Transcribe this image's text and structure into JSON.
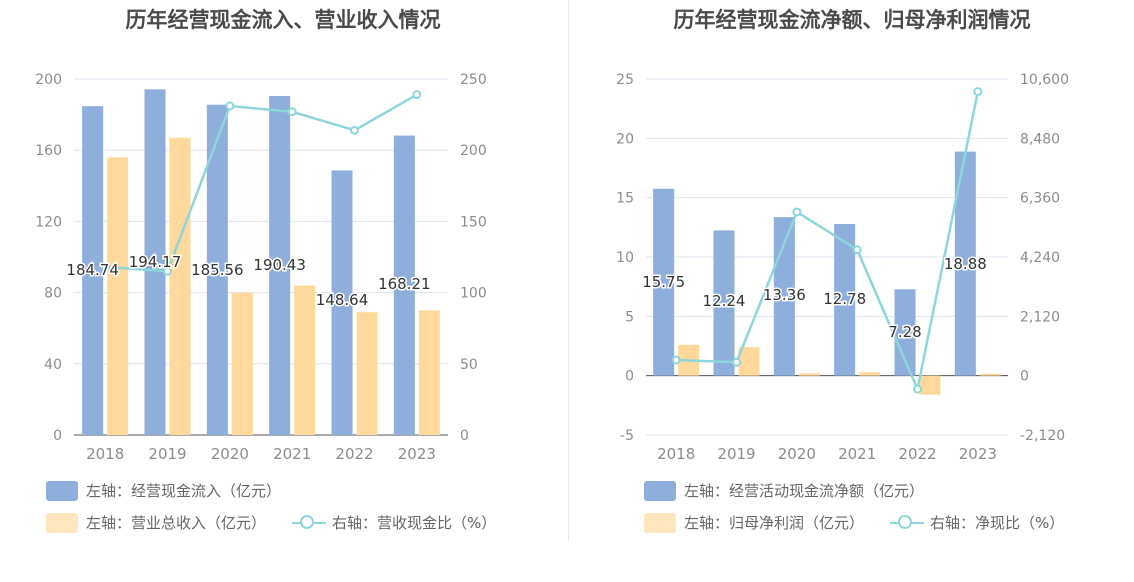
{
  "colors": {
    "primary_bar": "#8eaedb",
    "secondary_bar": "#ffd99b",
    "line": "#8dd6dc",
    "grid": "#dfe3f0",
    "axis": "#8c8c8c"
  },
  "chart_data": [
    {
      "type": "bar",
      "title": "历年经营现金流入、营业收入情况",
      "categories": [
        "2018",
        "2019",
        "2020",
        "2021",
        "2022",
        "2023"
      ],
      "y_left": {
        "min": 0,
        "max": 200,
        "ticks": [
          "0",
          "40",
          "80",
          "120",
          "160",
          "200"
        ]
      },
      "y_right": {
        "min": 0,
        "max": 250,
        "ticks": [
          "0",
          "50",
          "100",
          "150",
          "200",
          "250"
        ]
      },
      "series": [
        {
          "name": "左轴：经营现金流入（亿元）",
          "axis": "left",
          "kind": "bar",
          "values": [
            184.74,
            194.17,
            185.56,
            190.43,
            148.64,
            168.21
          ],
          "labels": [
            "184.74",
            "194.17",
            "185.56",
            "190.43",
            "148.64",
            "168.21"
          ]
        },
        {
          "name": "左轴：营业总收入（亿元）",
          "axis": "left",
          "kind": "bar",
          "values": [
            156,
            167,
            80,
            84,
            69,
            70
          ]
        },
        {
          "name": "右轴：营收现金比（%）",
          "axis": "right",
          "kind": "line",
          "values": [
            118,
            115,
            231,
            227,
            214,
            239
          ]
        }
      ],
      "grid": true,
      "legend_position": "bottom-left"
    },
    {
      "type": "bar",
      "title": "历年经营现金流净额、归母净利润情况",
      "categories": [
        "2018",
        "2019",
        "2020",
        "2021",
        "2022",
        "2023"
      ],
      "y_left": {
        "min": -5,
        "max": 25,
        "ticks": [
          "-5",
          "0",
          "5",
          "10",
          "15",
          "20",
          "25"
        ]
      },
      "y_right": {
        "min": -2120,
        "max": 10600,
        "ticks": [
          "-2,120",
          "0",
          "2,120",
          "4,240",
          "6,360",
          "8,480",
          "10,600"
        ]
      },
      "series": [
        {
          "name": "左轴：经营活动现金流净额（亿元）",
          "axis": "left",
          "kind": "bar",
          "values": [
            15.75,
            12.24,
            13.36,
            12.78,
            7.28,
            18.88
          ],
          "labels": [
            "15.75",
            "12.24",
            "13.36",
            "12.78",
            "7.28",
            "18.88"
          ]
        },
        {
          "name": "左轴：归母净利润（亿元）",
          "axis": "left",
          "kind": "bar",
          "values": [
            2.6,
            2.4,
            0.2,
            0.3,
            -1.6,
            0.15
          ]
        },
        {
          "name": "右轴：净现比（%）",
          "axis": "right",
          "kind": "line",
          "values": [
            560,
            480,
            5850,
            4500,
            -480,
            10150
          ]
        }
      ],
      "grid": true,
      "legend_position": "bottom-left"
    }
  ]
}
